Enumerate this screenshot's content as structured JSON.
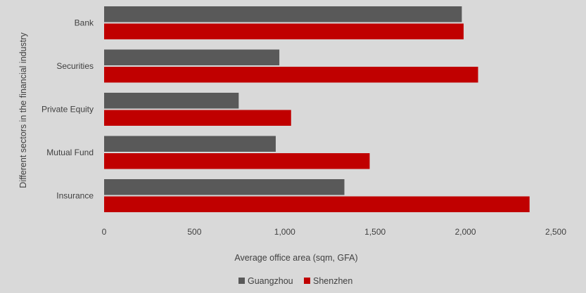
{
  "chart_data": {
    "type": "bar",
    "orientation": "horizontal",
    "categories": [
      "Bank",
      "Securities",
      "Private Equity",
      "Mutual Fund",
      "Insurance"
    ],
    "series": [
      {
        "name": "Guangzhou",
        "color": "#595959",
        "values": [
          1980,
          970,
          745,
          950,
          1330
        ]
      },
      {
        "name": "Shenzhen",
        "color": "#c00000",
        "values": [
          1990,
          2070,
          1035,
          1470,
          2355
        ]
      }
    ],
    "xlabel": "Average office area (sqm, GFA)",
    "ylabel": "Different sectors in the financial industry",
    "xlim": [
      0,
      2500
    ],
    "xticks": [
      0,
      500,
      1000,
      1500,
      2000,
      2500
    ],
    "xtick_labels": [
      "0",
      "500",
      "1,000",
      "1,500",
      "2,000",
      "2,500"
    ],
    "grid": false,
    "legend_position": "bottom"
  }
}
